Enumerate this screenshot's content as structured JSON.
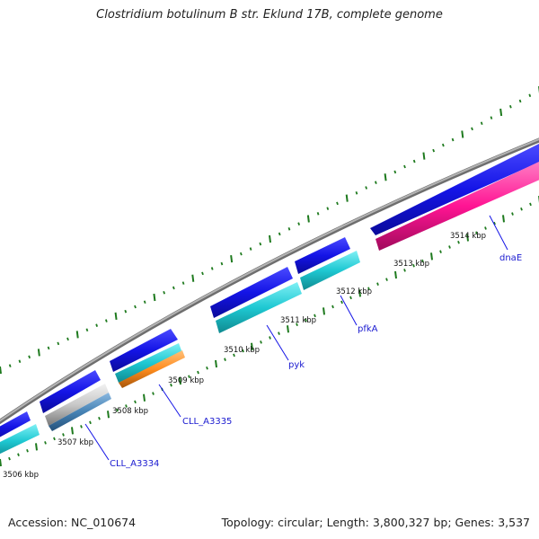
{
  "title": "Clostridium botulinum B str. Eklund 17B, complete genome",
  "footer": {
    "accession": "Accession: NC_010674",
    "summary": "Topology: circular; Length: 3,800,327 bp; Genes: 3,537"
  },
  "colors": {
    "backbone": "#8c8c8c",
    "forward_cds": "#1414e6",
    "reverse_cds": "#1ec8d2",
    "pink_feature": "#ff1493",
    "orange_feature": "#ff8c1e",
    "gray_feature": "#c8c8c8",
    "steel_feature": "#4682b4",
    "ticks": "#1e7a1e",
    "label_line": "#1414e6"
  },
  "scale_labels": [
    "3506 kbp",
    "3507 kbp",
    "3508 kbp",
    "3509 kbp",
    "3510 kbp",
    "3511 kbp",
    "3512 kbp",
    "3513 kbp",
    "3514 kbp"
  ],
  "gene_labels": [
    "CLL_A3334",
    "CLL_A3335",
    "pyk",
    "pfkA",
    "dnaE"
  ]
}
